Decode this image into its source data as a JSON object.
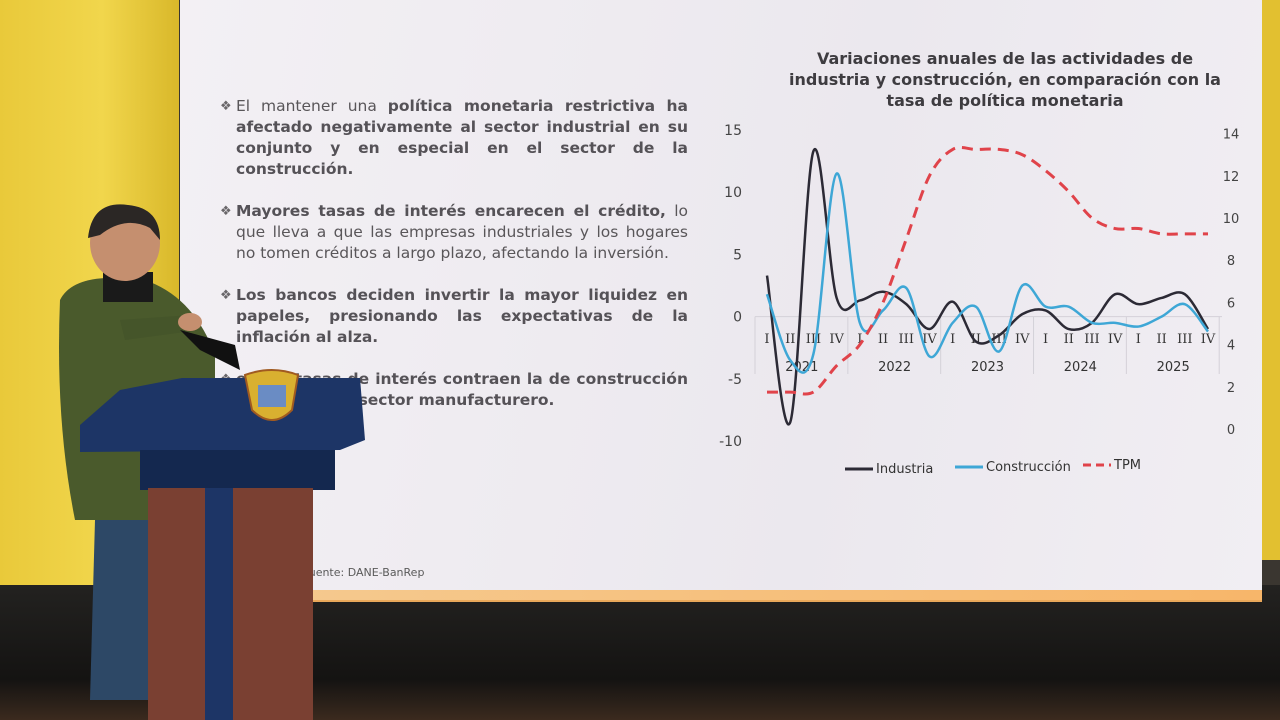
{
  "slide": {
    "bullets": [
      {
        "parts": [
          {
            "t": "El mantener una ",
            "b": false
          },
          {
            "t": "política monetaria restrictiva ha afectado negativamente al sector industrial en su conjunto y en especial en el sector de la construcción.",
            "b": true
          }
        ]
      },
      {
        "parts": [
          {
            "t": "Mayores tasas de interés encarecen el crédito,",
            "b": true
          },
          {
            "t": " lo que lleva a que las empresas industriales y los hogares no tomen créditos a largo plazo, afectando la inversión.",
            "b": false
          }
        ]
      },
      {
        "parts": [
          {
            "t": "Los bancos deciden invertir la mayor liquidez en papeles, presionando las expectativas de la inflación al alza.",
            "b": true
          }
        ]
      },
      {
        "parts": [
          {
            "t": "en las tasas de interés contraen la",
            "b": true
          },
          {
            "t": " de construcción",
            "b": true
          },
          {
            "t": " y reducen la",
            "b": false
          },
          {
            "t": " el sector manufacturero.",
            "b": true
          }
        ]
      }
    ],
    "source": ". Fuente: DANE-BanRep"
  },
  "chart_data": {
    "type": "line",
    "title": "Variaciones anuales de las actividades de industria y construcción, en comparación con la tasa de política monetaria",
    "quarter_labels": [
      "I",
      "II",
      "III",
      "IV",
      "I",
      "II",
      "III",
      "IV",
      "I",
      "II",
      "III",
      "IV",
      "I",
      "II",
      "III",
      "IV",
      "I",
      "II",
      "III",
      "IV"
    ],
    "years": [
      "2021",
      "2022",
      "2023",
      "2024",
      "2025"
    ],
    "ylim_left": [
      -10,
      15
    ],
    "yticks_left": [
      "15",
      "10",
      "5",
      "0",
      "-5",
      "-10"
    ],
    "ylim_right": [
      0,
      14
    ],
    "yticks_right": [
      "14",
      "12",
      "10",
      "8",
      "6",
      "4",
      "2",
      "0"
    ],
    "series": [
      {
        "name": "Industria",
        "axis": "left",
        "color": "#2c2a35",
        "dash": false,
        "values": [
          3.3,
          -8.5,
          13.3,
          1.5,
          1.3,
          2.0,
          1.0,
          -1.0,
          1.2,
          -2.0,
          -1.5,
          0.2,
          0.5,
          -1.0,
          -0.5,
          1.8,
          1.0,
          1.5,
          1.8,
          -1.0
        ]
      },
      {
        "name": "Construcción",
        "axis": "left",
        "color": "#3ea7d6",
        "dash": false,
        "values": [
          1.8,
          -3.5,
          -3.0,
          11.5,
          -0.5,
          0.5,
          2.3,
          -3.2,
          -0.5,
          0.8,
          -2.8,
          2.5,
          0.8,
          0.8,
          -0.5,
          -0.5,
          -0.8,
          0.0,
          1.0,
          -1.2
        ]
      },
      {
        "name": "TPM",
        "axis": "right",
        "color": "#e0434a",
        "dash": true,
        "values": [
          1.75,
          1.75,
          1.75,
          3.0,
          4.0,
          6.0,
          9.0,
          12.0,
          13.25,
          13.25,
          13.25,
          13.0,
          12.25,
          11.25,
          10.0,
          9.5,
          9.5,
          9.25,
          9.25,
          9.25
        ]
      }
    ],
    "legend_position": "bottom",
    "grid": false
  },
  "colors": {
    "stage_yellow": "#e9c93a",
    "podium_blue": "#1d3566"
  }
}
